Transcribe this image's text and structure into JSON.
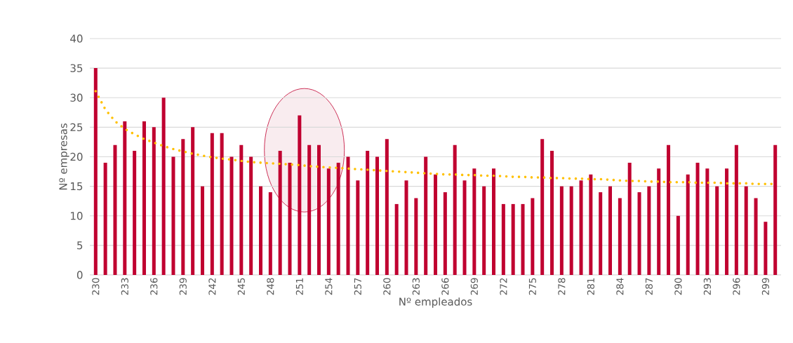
{
  "chart_data": {
    "type": "bar",
    "xlabel": "Nº empleados",
    "ylabel": "Nº empresas",
    "categories": [
      "230",
      null,
      null,
      "233",
      null,
      null,
      "236",
      null,
      null,
      "239",
      null,
      null,
      "242",
      null,
      null,
      "245",
      null,
      null,
      "248",
      null,
      null,
      "251",
      null,
      null,
      "254",
      null,
      null,
      "257",
      null,
      null,
      "260",
      null,
      null,
      "263",
      null,
      null,
      "266",
      null,
      null,
      "269",
      null,
      null,
      "272",
      null,
      null,
      "275",
      null,
      null,
      "278",
      null,
      null,
      "281",
      null,
      null,
      "284",
      null,
      null,
      "287",
      null,
      null,
      "290",
      null,
      null,
      "293",
      null,
      null,
      "296",
      null,
      null,
      "299",
      null
    ],
    "series": [
      {
        "color": "#c00030",
        "values": [
          35,
          19,
          22,
          26,
          21,
          26,
          25,
          30,
          20,
          23,
          25,
          15,
          24,
          24,
          20,
          22,
          20,
          15,
          14,
          21,
          19,
          27,
          22,
          22,
          18,
          19,
          20,
          16,
          21,
          20,
          23,
          12,
          16,
          13,
          20,
          17,
          14,
          22,
          16,
          18,
          15,
          18,
          12,
          12,
          12,
          13,
          23,
          21,
          15,
          15,
          16,
          17,
          14,
          15,
          13,
          19,
          14,
          15,
          18,
          22,
          10,
          17,
          19,
          18,
          15,
          18,
          22,
          15,
          13,
          9,
          22
        ]
      },
      {
        "type": "line",
        "color": "#ffc000",
        "line_style": "dotted",
        "values": [
          31.1,
          28.0,
          26.0,
          24.7,
          23.8,
          23.0,
          22.4,
          21.8,
          21.3,
          20.9,
          20.5,
          20.2,
          19.9,
          19.7,
          19.5,
          19.3,
          19.1,
          19.0,
          18.9,
          18.8,
          18.7,
          18.6,
          18.4,
          18.3,
          18.2,
          18.1,
          18.0,
          17.9,
          17.8,
          17.7,
          17.6,
          17.5,
          17.4,
          17.3,
          17.2,
          17.1,
          17.0,
          17.0,
          16.9,
          16.9,
          16.8,
          16.8,
          16.7,
          16.6,
          16.6,
          16.5,
          16.5,
          16.4,
          16.4,
          16.3,
          16.3,
          16.2,
          16.2,
          16.1,
          16.0,
          15.9,
          15.9,
          15.8,
          15.8,
          15.7,
          15.7,
          15.7,
          15.6,
          15.6,
          15.6,
          15.5,
          15.5,
          15.5,
          15.4,
          15.4,
          15.4
        ]
      }
    ],
    "ylim": [
      0,
      40
    ],
    "yticks": [
      0,
      5,
      10,
      15,
      20,
      25,
      30,
      35,
      40
    ],
    "grid": "y",
    "legend": false
  }
}
